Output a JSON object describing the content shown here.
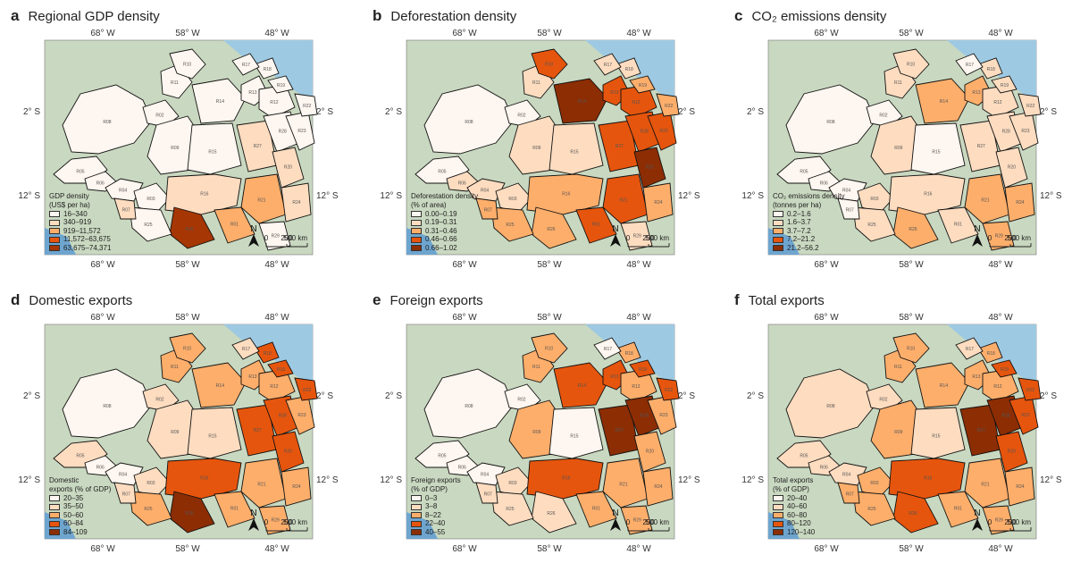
{
  "panels": [
    {
      "letter": "a",
      "title": "Regional GDP density",
      "legend_title_lines": [
        "GDP density",
        "(US$ per ha)"
      ],
      "legend": [
        "16–340",
        "340–919",
        "919–11,572",
        "11,572–63,675",
        "63,675–74,371"
      ],
      "colors": [
        "#fef6f0",
        "#fddcc0",
        "#fdae6b",
        "#e6550d",
        "#a63603"
      ],
      "region_classes": [
        0,
        0,
        0,
        0,
        0,
        0,
        0,
        0,
        0,
        0,
        0,
        0,
        0,
        1,
        0,
        1,
        1,
        2,
        1,
        0,
        0,
        0,
        0,
        0,
        4,
        2,
        0,
        1,
        0
      ]
    },
    {
      "letter": "b",
      "title": "Deforestation density",
      "legend_title_lines": [
        "Deforestation density",
        "(% of area)"
      ],
      "legend": [
        "0.00–0.19",
        "0.19–0.31",
        "0.31–0.46",
        "0.46–0.66",
        "0.66–1.02"
      ],
      "colors": [
        "#fef6f0",
        "#fddcc0",
        "#fdae6b",
        "#e6550d",
        "#8c2d04"
      ],
      "region_classes": [
        0,
        1,
        0,
        1,
        1,
        0,
        1,
        1,
        3,
        4,
        3,
        3,
        1,
        3,
        3,
        2,
        4,
        3,
        2,
        3,
        2,
        2,
        1,
        1,
        2,
        3,
        2,
        2,
        1
      ]
    },
    {
      "letter": "c",
      "title": "CO₂ emissions density",
      "legend_title_lines": [
        "CO₂ emissions density",
        "(tonnes per ha)"
      ],
      "legend": [
        "0.2–1.6",
        "1.6–3.7",
        "3.7–7.2",
        "7.2–21.2",
        "21.2–56.2"
      ],
      "colors": [
        "#fef6f0",
        "#fddcc0",
        "#fdae6b",
        "#e6550d",
        "#8c2d04"
      ],
      "region_classes": [
        0,
        0,
        0,
        0,
        1,
        0,
        1,
        1,
        1,
        2,
        2,
        1,
        0,
        1,
        1,
        1,
        1,
        2,
        2,
        1,
        1,
        1,
        1,
        0,
        2,
        1,
        1,
        0,
        2
      ]
    },
    {
      "letter": "d",
      "title": "Domestic exports",
      "legend_title_lines": [
        "Domestic",
        "exports (% of GDP)"
      ],
      "legend": [
        "20–35",
        "35–50",
        "50–60",
        "60–84",
        "84–109"
      ],
      "colors": [
        "#fef6f0",
        "#fddcc0",
        "#fdae6b",
        "#e6550d",
        "#8c2d04"
      ],
      "region_classes": [
        1,
        0,
        0,
        0,
        1,
        1,
        1,
        2,
        2,
        2,
        2,
        2,
        1,
        3,
        3,
        3,
        3,
        2,
        2,
        2,
        3,
        3,
        3,
        1,
        4,
        2,
        2,
        1,
        2
      ]
    },
    {
      "letter": "e",
      "title": "Foreign exports",
      "legend_title_lines": [
        "Foreign exports",
        "(% of GDP)"
      ],
      "legend": [
        "0–3",
        "3–8",
        "8–22",
        "22–40",
        "40–55"
      ],
      "colors": [
        "#fef6f0",
        "#fddcc0",
        "#fdae6b",
        "#e6550d",
        "#8c2d04"
      ],
      "region_classes": [
        0,
        0,
        0,
        0,
        1,
        0,
        2,
        2,
        2,
        3,
        3,
        2,
        0,
        4,
        4,
        3,
        2,
        2,
        2,
        2,
        3,
        3,
        2,
        0,
        1,
        2,
        1,
        1,
        2
      ]
    },
    {
      "letter": "f",
      "title": "Total exports",
      "legend_title_lines": [
        "Total exports",
        "(% of GDP)"
      ],
      "legend": [
        "20–40",
        "40–60",
        "60–80",
        "80–120",
        "120–140"
      ],
      "colors": [
        "#fef6f0",
        "#fddcc0",
        "#fdae6b",
        "#e6550d",
        "#8c2d04"
      ],
      "region_classes": [
        1,
        1,
        1,
        1,
        2,
        1,
        2,
        2,
        2,
        2,
        2,
        2,
        1,
        4,
        4,
        3,
        3,
        2,
        2,
        3,
        3,
        3,
        2,
        1,
        3,
        2,
        2,
        2,
        2
      ]
    }
  ],
  "axes": {
    "lon_labels": [
      "68° W",
      "58° W",
      "48° W"
    ],
    "lat_labels": [
      "2° S",
      "12° S"
    ]
  },
  "scale_bar": {
    "ticks": [
      "0",
      "250",
      "500 km"
    ],
    "north": "N"
  },
  "region_codes": [
    "R05",
    "R06",
    "R08",
    "R04",
    "R03",
    "R02",
    "R09",
    "R11",
    "R10",
    "R14",
    "R13",
    "R12",
    "R15",
    "R27",
    "R28",
    "R16",
    "R20",
    "R21",
    "R24",
    "R23",
    "R22",
    "R19",
    "R18",
    "R17",
    "R26",
    "R01",
    "R25",
    "R07",
    "R29"
  ],
  "colors_meta": {
    "ocean": "#9ec9e2",
    "land": "#c9d8c0",
    "border": "#111111"
  }
}
